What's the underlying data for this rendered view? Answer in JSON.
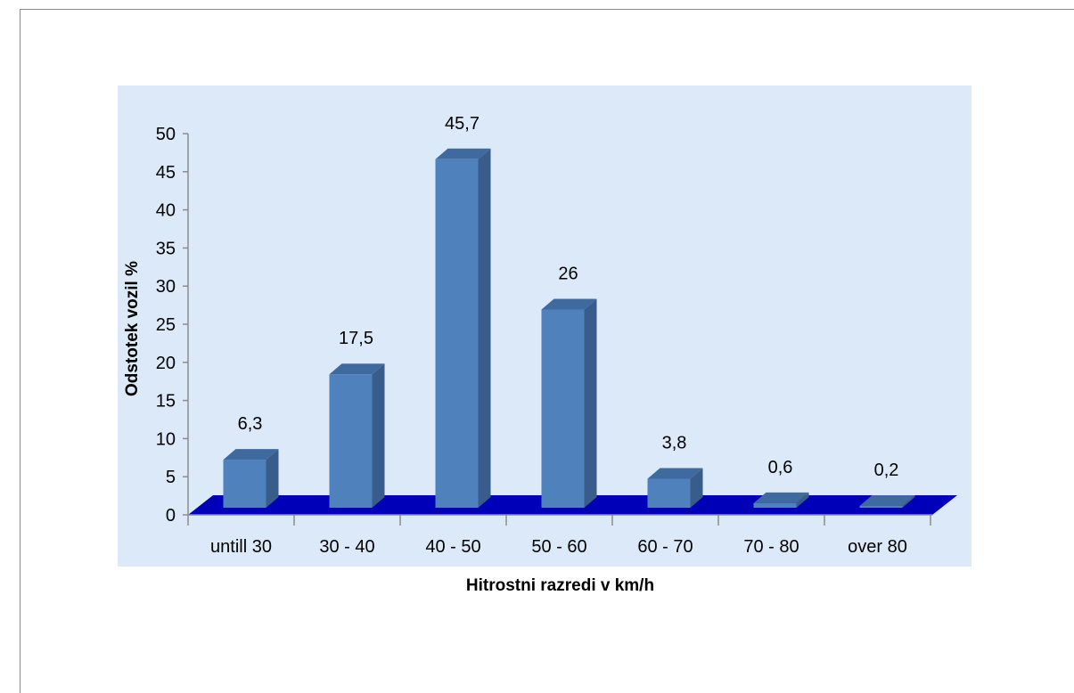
{
  "chart_data": {
    "type": "bar",
    "categories": [
      "untill 30",
      "30 - 40",
      "40 - 50",
      "50 - 60",
      "60 - 70",
      "70 - 80",
      "over 80"
    ],
    "values": [
      6.3,
      17.5,
      45.7,
      26,
      3.8,
      0.6,
      0.2
    ],
    "data_labels": [
      "6,3",
      "17,5",
      "45,7",
      "26",
      "3,8",
      "0,6",
      "0,2"
    ],
    "xlabel": "Hitrostni razredi v km/h",
    "ylabel": "Odstotek vozil %",
    "ylim": [
      0,
      50
    ],
    "yticks": [
      0,
      5,
      10,
      15,
      20,
      25,
      30,
      35,
      40,
      45,
      50
    ],
    "grid": false,
    "legend": "none",
    "colors": {
      "plot_background": "#dbe9f9",
      "bar_front": "#4f81bd",
      "bar_side": "#385d8a",
      "bar_top": "#3f6aa0",
      "floor": "#0000b8",
      "axis": "#8c8c8c"
    }
  }
}
